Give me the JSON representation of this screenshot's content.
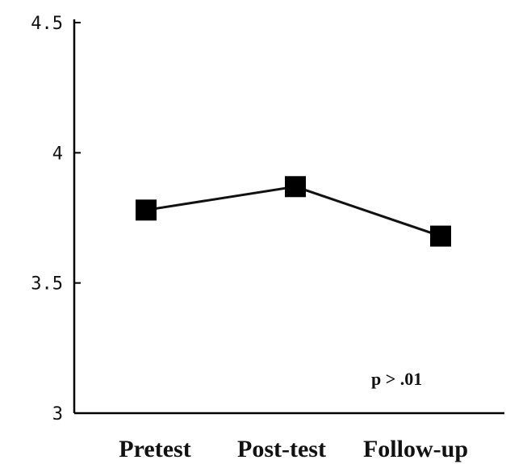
{
  "chart_data": {
    "type": "line",
    "categories": [
      "Pretest",
      "Post-test",
      "Follow-up"
    ],
    "series": [
      {
        "values": [
          3.78,
          3.87,
          3.68
        ]
      }
    ],
    "yticks": [
      "4.5",
      "4",
      "3.5",
      "3"
    ],
    "ylim": [
      3,
      4.5
    ],
    "annotation": "p > .01",
    "grid": false,
    "marker": "square",
    "colors": {
      "line": "#111111",
      "marker": "#000000",
      "axis": "#000000"
    }
  }
}
